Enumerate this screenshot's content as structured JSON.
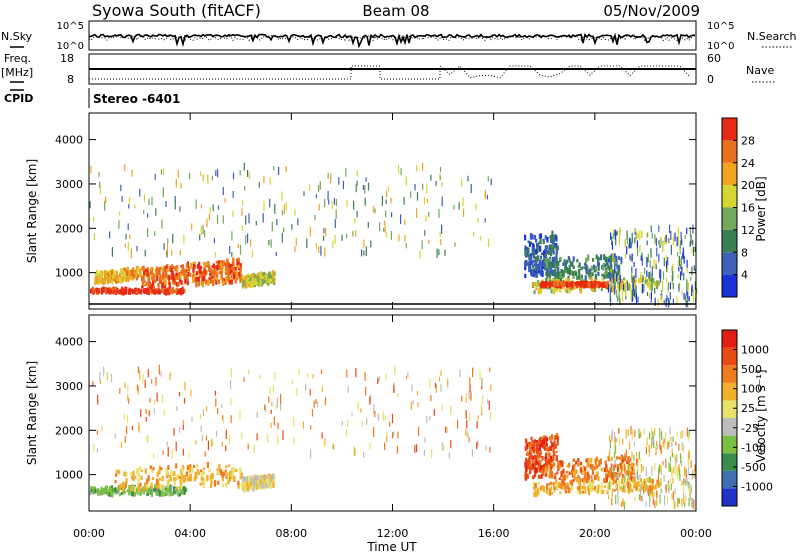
{
  "header": {
    "station": "Syowa South (fitACF)",
    "beam": "Beam 08",
    "date": "05/Nov/2009"
  },
  "panels": {
    "nsky": {
      "label": "N.Sky",
      "ticks": [
        "10^5",
        "10^0"
      ],
      "right_label": "N.Search",
      "right_ticks": [
        "10^5",
        "10^0"
      ]
    },
    "freq": {
      "label_line1": "Freq.",
      "label_line2": "[MHz]",
      "ticks": [
        "18",
        "8"
      ],
      "right_label": "Nave",
      "right_ticks": [
        "60",
        "0"
      ]
    },
    "cpid": {
      "label": "CPID",
      "value": "Stereo -6401"
    }
  },
  "colors": {
    "power": [
      "#1a33d6",
      "#3d60b8",
      "#3a7f54",
      "#74a85a",
      "#d6d633",
      "#f0a421",
      "#e8701e",
      "#e82a14"
    ],
    "velocity": [
      "#2033c8",
      "#3e6fb0",
      "#3a8c4a",
      "#7cc043",
      "#bdbdbd",
      "#e8e26a",
      "#f0b02a",
      "#f07a1e",
      "#e84a14",
      "#e01e14"
    ]
  },
  "chart_data": [
    {
      "type": "heatmap",
      "title": "",
      "xlabel": "",
      "ylabel": "Slant Range [km]",
      "x_ticks": [
        "00:00",
        "04:00",
        "08:00",
        "12:00",
        "16:00",
        "20:00",
        "00:00"
      ],
      "xlim": [
        0,
        24
      ],
      "y_ticks": [
        1000,
        2000,
        3000,
        4000
      ],
      "ylim": [
        180,
        4600
      ],
      "colorbar": {
        "label": "Power [dB]",
        "ticks": [
          "28",
          "24",
          "20",
          "16",
          "12",
          "8",
          "4"
        ]
      },
      "series": [
        {
          "t_start": 0.0,
          "t_end": 3.8,
          "range_start": 550,
          "range_end": 620,
          "level": 7
        },
        {
          "t_start": 0.2,
          "t_end": 2.0,
          "range_start": 760,
          "range_end": 1000,
          "level": 5
        },
        {
          "t_start": 2.0,
          "t_end": 4.2,
          "range_start": 650,
          "range_end": 1100,
          "level": 6
        },
        {
          "t_start": 4.2,
          "t_end": 6.0,
          "range_start": 700,
          "range_end": 1200,
          "level": 6
        },
        {
          "t_start": 6.0,
          "t_end": 7.3,
          "range_start": 680,
          "range_end": 900,
          "level": 4
        },
        {
          "t_start": 0.0,
          "t_end": 16.0,
          "range_start": 1400,
          "range_end": 3400,
          "level": 3
        },
        {
          "t_start": 17.2,
          "t_end": 18.5,
          "range_start": 900,
          "range_end": 1800,
          "level": 1
        },
        {
          "t_start": 18.0,
          "t_end": 21.0,
          "range_start": 800,
          "range_end": 1300,
          "level": 2
        },
        {
          "t_start": 17.5,
          "t_end": 22.5,
          "range_start": 550,
          "range_end": 800,
          "level": 4
        },
        {
          "t_start": 17.8,
          "t_end": 20.5,
          "range_start": 700,
          "range_end": 760,
          "level": 7
        },
        {
          "t_start": 20.5,
          "t_end": 24.0,
          "range_start": 300,
          "range_end": 2000,
          "level": 2
        }
      ]
    },
    {
      "type": "heatmap",
      "title": "",
      "xlabel": "Time UT",
      "ylabel": "Slant Range [km]",
      "x_ticks": [
        "00:00",
        "04:00",
        "08:00",
        "12:00",
        "16:00",
        "20:00",
        "00:00"
      ],
      "xlim": [
        0,
        24
      ],
      "y_ticks": [
        1000,
        2000,
        3000,
        4000
      ],
      "ylim": [
        180,
        4600
      ],
      "colorbar": {
        "label": "Velocity [m s⁻¹]",
        "ticks": [
          "1000",
          "500",
          "100",
          "25",
          "-25",
          "-100",
          "-500",
          "-1000"
        ]
      },
      "series": [
        {
          "t_start": 0.0,
          "t_end": 3.8,
          "range_start": 550,
          "range_end": 720,
          "level": 3
        },
        {
          "t_start": 1.0,
          "t_end": 6.0,
          "range_start": 650,
          "range_end": 1150,
          "level": 6
        },
        {
          "t_start": 6.0,
          "t_end": 7.3,
          "range_start": 650,
          "range_end": 900,
          "level": 5
        },
        {
          "t_start": 0.0,
          "t_end": 16.0,
          "range_start": 1400,
          "range_end": 3400,
          "level": 6
        },
        {
          "t_start": 17.2,
          "t_end": 18.5,
          "range_start": 900,
          "range_end": 1800,
          "level": 8
        },
        {
          "t_start": 18.0,
          "t_end": 21.5,
          "range_start": 800,
          "range_end": 1300,
          "level": 7
        },
        {
          "t_start": 17.5,
          "t_end": 22.5,
          "range_start": 550,
          "range_end": 800,
          "level": 6
        },
        {
          "t_start": 20.5,
          "t_end": 24.0,
          "range_start": 300,
          "range_end": 2000,
          "level": 5
        }
      ]
    }
  ]
}
